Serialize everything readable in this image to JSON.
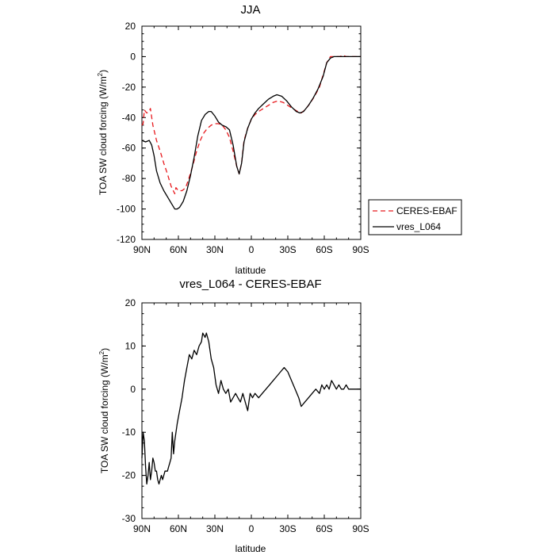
{
  "chart_data": [
    {
      "type": "line",
      "title": "JJA",
      "xlabel": "latitude",
      "ylabel_main": "TOA SW cloud forcing (W/m",
      "ylabel_sup": "2",
      "ylabel_tail": ")",
      "xlim": [
        90,
        -90
      ],
      "ylim": [
        -120,
        20
      ],
      "xticks": [
        90,
        60,
        30,
        0,
        -30,
        -60,
        -90
      ],
      "xticklabels": [
        "90N",
        "60N",
        "30N",
        "0",
        "30S",
        "60S",
        "90S"
      ],
      "yticks": [
        -120,
        -100,
        -80,
        -60,
        -40,
        -20,
        0,
        20
      ],
      "yticklabels": [
        "-120",
        "-100",
        "-80",
        "-60",
        "-40",
        "-20",
        "0",
        "20"
      ],
      "legend_position": "right",
      "series": [
        {
          "name": "CERES-EBAF",
          "color": "#e8191d",
          "dash": "dashed",
          "points": [
            [
              90,
              -45
            ],
            [
              89,
              -44
            ],
            [
              88,
              -35
            ],
            [
              86,
              -37
            ],
            [
              84,
              -36
            ],
            [
              83,
              -34
            ],
            [
              81,
              -45
            ],
            [
              78,
              -55
            ],
            [
              75,
              -62
            ],
            [
              72,
              -70
            ],
            [
              69,
              -77
            ],
            [
              66,
              -85
            ],
            [
              63,
              -90
            ],
            [
              62,
              -86
            ],
            [
              60,
              -88
            ],
            [
              57,
              -88
            ],
            [
              54,
              -86
            ],
            [
              51,
              -79
            ],
            [
              48,
              -71
            ],
            [
              45,
              -62
            ],
            [
              42,
              -55
            ],
            [
              39,
              -50
            ],
            [
              36,
              -47
            ],
            [
              33,
              -45
            ],
            [
              30,
              -44
            ],
            [
              27,
              -44
            ],
            [
              24,
              -45
            ],
            [
              21,
              -48
            ],
            [
              18,
              -53
            ],
            [
              15,
              -62
            ],
            [
              12,
              -72
            ],
            [
              10,
              -77
            ],
            [
              8,
              -70
            ],
            [
              6,
              -55
            ],
            [
              3,
              -47
            ],
            [
              0,
              -41
            ],
            [
              -3,
              -38
            ],
            [
              -6,
              -36
            ],
            [
              -10,
              -34
            ],
            [
              -14,
              -32
            ],
            [
              -18,
              -30
            ],
            [
              -22,
              -29
            ],
            [
              -26,
              -30
            ],
            [
              -30,
              -32
            ],
            [
              -34,
              -34
            ],
            [
              -38,
              -36
            ],
            [
              -41,
              -37
            ],
            [
              -44,
              -35
            ],
            [
              -48,
              -31
            ],
            [
              -52,
              -26
            ],
            [
              -56,
              -20
            ],
            [
              -59,
              -12
            ],
            [
              -62,
              -4
            ],
            [
              -65,
              0
            ],
            [
              -68,
              0
            ],
            [
              -70,
              0
            ],
            [
              -73,
              0
            ],
            [
              -75,
              1
            ],
            [
              -78,
              0
            ],
            [
              -82,
              0
            ],
            [
              -86,
              0
            ],
            [
              -90,
              0
            ]
          ]
        },
        {
          "name": "vres_L064",
          "color": "#000000",
          "dash": "solid",
          "points": [
            [
              90,
              -55
            ],
            [
              87,
              -56
            ],
            [
              84,
              -55
            ],
            [
              82,
              -58
            ],
            [
              80,
              -65
            ],
            [
              78,
              -75
            ],
            [
              75,
              -83
            ],
            [
              72,
              -88
            ],
            [
              69,
              -92
            ],
            [
              66,
              -96
            ],
            [
              63,
              -100
            ],
            [
              61,
              -100
            ],
            [
              59,
              -99
            ],
            [
              56,
              -95
            ],
            [
              53,
              -88
            ],
            [
              50,
              -78
            ],
            [
              47,
              -66
            ],
            [
              44,
              -52
            ],
            [
              41,
              -42
            ],
            [
              38,
              -38
            ],
            [
              35,
              -36
            ],
            [
              33,
              -36
            ],
            [
              30,
              -39
            ],
            [
              27,
              -43
            ],
            [
              24,
              -45
            ],
            [
              21,
              -46
            ],
            [
              18,
              -48
            ],
            [
              15,
              -58
            ],
            [
              12,
              -72
            ],
            [
              10,
              -77
            ],
            [
              8,
              -70
            ],
            [
              6,
              -56
            ],
            [
              3,
              -47
            ],
            [
              0,
              -41
            ],
            [
              -3,
              -37
            ],
            [
              -6,
              -34
            ],
            [
              -10,
              -31
            ],
            [
              -14,
              -28
            ],
            [
              -18,
              -26
            ],
            [
              -21,
              -25
            ],
            [
              -25,
              -26
            ],
            [
              -29,
              -29
            ],
            [
              -33,
              -33
            ],
            [
              -37,
              -36
            ],
            [
              -40,
              -37
            ],
            [
              -43,
              -36
            ],
            [
              -47,
              -32
            ],
            [
              -51,
              -27
            ],
            [
              -55,
              -21
            ],
            [
              -59,
              -13
            ],
            [
              -62,
              -4
            ],
            [
              -65,
              -1
            ],
            [
              -68,
              0
            ],
            [
              -71,
              0
            ],
            [
              -75,
              0
            ],
            [
              -80,
              0
            ],
            [
              -85,
              0
            ],
            [
              -90,
              0
            ]
          ]
        }
      ]
    },
    {
      "type": "line",
      "title": "vres_L064 - CERES-EBAF",
      "xlabel": "latitude",
      "ylabel_main": "TOA SW cloud forcing (W/m",
      "ylabel_sup": "2",
      "ylabel_tail": ")",
      "xlim": [
        90,
        -90
      ],
      "ylim": [
        -30,
        20
      ],
      "xticks": [
        90,
        60,
        30,
        0,
        -30,
        -60,
        -90
      ],
      "xticklabels": [
        "90N",
        "60N",
        "30N",
        "0",
        "30S",
        "60S",
        "90S"
      ],
      "yticks": [
        -30,
        -20,
        -10,
        0,
        10,
        20
      ],
      "yticklabels": [
        "-30",
        "-20",
        "-10",
        "0",
        "10",
        "20"
      ],
      "series": [
        {
          "color": "#000000",
          "dash": "solid",
          "points": [
            [
              90,
              -16
            ],
            [
              89,
              -10
            ],
            [
              88,
              -12
            ],
            [
              87,
              -18
            ],
            [
              86,
              -22
            ],
            [
              85,
              -20
            ],
            [
              84,
              -17
            ],
            [
              83,
              -21
            ],
            [
              82,
              -19
            ],
            [
              81,
              -16
            ],
            [
              80,
              -17
            ],
            [
              79,
              -19
            ],
            [
              78,
              -19
            ],
            [
              77,
              -21
            ],
            [
              76,
              -22
            ],
            [
              75,
              -21
            ],
            [
              74,
              -20
            ],
            [
              73,
              -21
            ],
            [
              72,
              -20
            ],
            [
              71,
              -19
            ],
            [
              70,
              -19
            ],
            [
              69,
              -19
            ],
            [
              68,
              -18
            ],
            [
              67,
              -17
            ],
            [
              66,
              -16
            ],
            [
              65,
              -10
            ],
            [
              64,
              -15
            ],
            [
              63,
              -12
            ],
            [
              61,
              -8
            ],
            [
              59,
              -5
            ],
            [
              57,
              -2
            ],
            [
              55,
              2
            ],
            [
              53,
              5
            ],
            [
              51,
              8
            ],
            [
              49,
              7
            ],
            [
              47,
              9
            ],
            [
              45,
              8
            ],
            [
              43,
              10
            ],
            [
              41,
              11
            ],
            [
              40,
              13
            ],
            [
              38,
              12
            ],
            [
              37,
              13
            ],
            [
              35,
              11
            ],
            [
              33,
              7
            ],
            [
              31,
              5
            ],
            [
              29,
              1
            ],
            [
              27,
              -1
            ],
            [
              25,
              2
            ],
            [
              23,
              0
            ],
            [
              21,
              -1
            ],
            [
              19,
              0
            ],
            [
              17,
              -3
            ],
            [
              15,
              -2
            ],
            [
              13,
              -1
            ],
            [
              11,
              -2
            ],
            [
              9,
              -3
            ],
            [
              7,
              -1
            ],
            [
              5,
              -3
            ],
            [
              3,
              -5
            ],
            [
              1,
              -1
            ],
            [
              -1,
              -2
            ],
            [
              -3,
              -1
            ],
            [
              -6,
              -2
            ],
            [
              -9,
              -1
            ],
            [
              -12,
              0
            ],
            [
              -15,
              1
            ],
            [
              -18,
              2
            ],
            [
              -21,
              3
            ],
            [
              -24,
              4
            ],
            [
              -27,
              5
            ],
            [
              -30,
              4
            ],
            [
              -33,
              2
            ],
            [
              -36,
              0
            ],
            [
              -39,
              -2
            ],
            [
              -41,
              -4
            ],
            [
              -44,
              -3
            ],
            [
              -47,
              -2
            ],
            [
              -50,
              -1
            ],
            [
              -53,
              0
            ],
            [
              -56,
              -1
            ],
            [
              -58,
              1
            ],
            [
              -60,
              0
            ],
            [
              -62,
              1
            ],
            [
              -64,
              0
            ],
            [
              -66,
              2
            ],
            [
              -68,
              1
            ],
            [
              -70,
              0
            ],
            [
              -72,
              1
            ],
            [
              -74,
              0
            ],
            [
              -76,
              0
            ],
            [
              -78,
              1
            ],
            [
              -80,
              0
            ],
            [
              -83,
              0
            ],
            [
              -86,
              0
            ],
            [
              -90,
              0
            ]
          ]
        }
      ]
    }
  ]
}
